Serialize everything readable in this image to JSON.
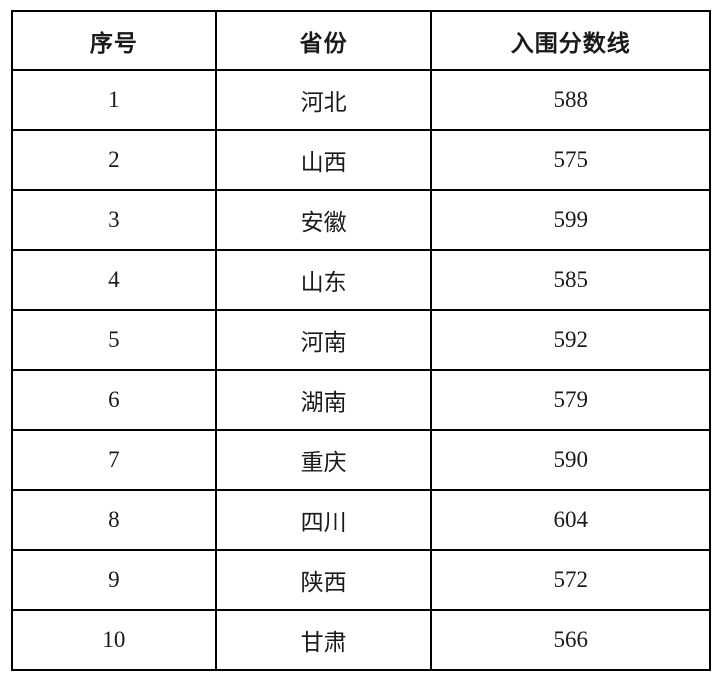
{
  "table": {
    "headers": [
      "序号",
      "省份",
      "入围分数线"
    ],
    "rows": [
      {
        "no": "1",
        "province": "河北",
        "score": "588"
      },
      {
        "no": "2",
        "province": "山西",
        "score": "575"
      },
      {
        "no": "3",
        "province": "安徽",
        "score": "599"
      },
      {
        "no": "4",
        "province": "山东",
        "score": "585"
      },
      {
        "no": "5",
        "province": "河南",
        "score": "592"
      },
      {
        "no": "6",
        "province": "湖南",
        "score": "579"
      },
      {
        "no": "7",
        "province": "重庆",
        "score": "590"
      },
      {
        "no": "8",
        "province": "四川",
        "score": "604"
      },
      {
        "no": "9",
        "province": "陕西",
        "score": "572"
      },
      {
        "no": "10",
        "province": "甘肃",
        "score": "566"
      }
    ]
  },
  "colors": {
    "border": "#000000",
    "text": "#1a1a1a",
    "background": "#ffffff"
  },
  "chart_data": {
    "type": "table",
    "title": "",
    "columns": [
      "序号",
      "省份",
      "入围分数线"
    ],
    "categories": [
      "河北",
      "山西",
      "安徽",
      "山东",
      "河南",
      "湖南",
      "重庆",
      "四川",
      "陕西",
      "甘肃"
    ],
    "values": [
      588,
      575,
      599,
      585,
      592,
      579,
      590,
      604,
      572,
      566
    ],
    "notes": "入围分数线 per province, rows numbered 1-10"
  }
}
